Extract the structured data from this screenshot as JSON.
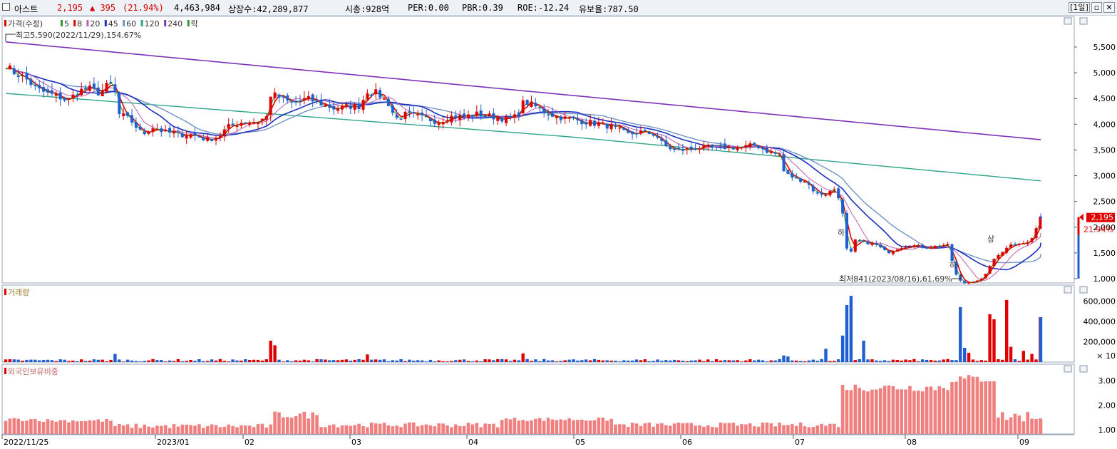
{
  "header": {
    "name": "아스트",
    "price": "2,195",
    "change": "▲ 395",
    "change_pct": "(21.94%)",
    "volume": "4,463,984",
    "shares": "상장수:42,289,877",
    "mktcap": "시총:928억",
    "per": "PER:0.00",
    "pbr": "PBR:0.39",
    "roe": "ROE:-12.24",
    "reserve": "유보율:787.50",
    "period_btn": "[1일]"
  },
  "price_legend": [
    "가격(수정)",
    "5",
    "8",
    "20",
    "45",
    "60",
    "120",
    "240",
    "락"
  ],
  "volume_legend": "거래량",
  "foreign_legend": "외국인보유비중",
  "annotations": {
    "high": "최고5,590(2022/11/29),154.67%",
    "low": "최저841(2023/08/16),61.69%",
    "current_price": "2,195",
    "current_pct": "21.94%",
    "ha1": "하",
    "ha2": "하",
    "sang": "상"
  },
  "x_labels": [
    "2022/11/25",
    "2023/01",
    "02",
    "03",
    "04",
    "05",
    "06",
    "07",
    "08",
    "09"
  ],
  "price_ticks": [
    "5,500",
    "5,000",
    "4,500",
    "4,000",
    "3,500",
    "3,000",
    "2,500",
    "2,000",
    "1,500",
    "1,000"
  ],
  "volume_ticks": [
    "600,000",
    "400,000",
    "200,000"
  ],
  "volume_unit": "× 10",
  "foreign_ticks": [
    "3.00",
    "2.00",
    "1.00"
  ],
  "colors": {
    "up": "#e00000",
    "down": "#1f5fd1",
    "ma5": "#2ca02c",
    "ma8": "#e00000",
    "ma20": "#c060b0",
    "ma45": "#1a2fc0",
    "ma60": "#6f93c7",
    "ma120": "#2fa58a",
    "ma240": "#7d32b8",
    "foreign": "#f08080"
  },
  "chart_data": {
    "type": "candlestick+bar",
    "price": {
      "ylim": [
        800,
        5800
      ],
      "monthly_closes": [
        {
          "month": "2022/11",
          "price": 5100
        },
        {
          "month": "2023/01",
          "price": 3750
        },
        {
          "month": "2023/02",
          "price": 4300
        },
        {
          "month": "2023/03",
          "price": 4250
        },
        {
          "month": "2023/04",
          "price": 4200
        },
        {
          "month": "2023/05",
          "price": 3950
        },
        {
          "month": "2023/06",
          "price": 3550
        },
        {
          "month": "2023/07",
          "price": 1800
        },
        {
          "month": "2023/08",
          "price": 950
        },
        {
          "month": "2023/09",
          "price": 2195
        }
      ],
      "ma240": [
        5600,
        3700
      ],
      "ma120": [
        4600,
        3050
      ],
      "high": 5590,
      "low": 841,
      "last": 2195
    },
    "volume_ylim": [
      0,
      700000
    ],
    "foreign_ylim": [
      0.8,
      3.6
    ]
  }
}
